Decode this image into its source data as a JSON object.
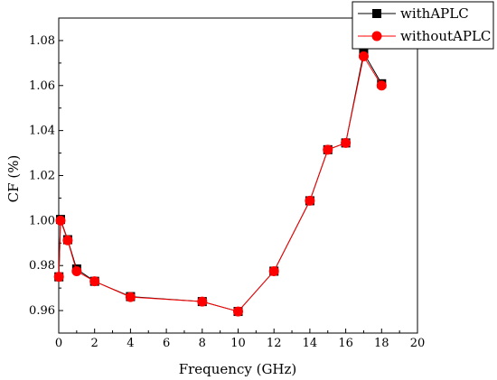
{
  "chart_data": {
    "type": "line",
    "title": "",
    "xlabel": "Frequency (GHz)",
    "ylabel": "CF (%)",
    "xlim": [
      0,
      20
    ],
    "ylim": [
      0.95,
      1.09
    ],
    "xticks": [
      0,
      2,
      4,
      6,
      8,
      10,
      12,
      14,
      16,
      18,
      20
    ],
    "yticks": [
      0.96,
      0.98,
      1.0,
      1.02,
      1.04,
      1.06,
      1.08
    ],
    "grid": false,
    "legend": "top-right",
    "series": [
      {
        "name": "withAPLC",
        "color": "#000000",
        "marker": "square",
        "points": [
          {
            "x": 0.01,
            "y": 0.975
          },
          {
            "x": 0.1,
            "y": 1.0005
          },
          {
            "x": 0.5,
            "y": 0.9915
          },
          {
            "x": 1,
            "y": 0.9785
          },
          {
            "x": 2,
            "y": 0.973
          },
          {
            "x": 4,
            "y": 0.9662
          },
          {
            "x": 8,
            "y": 0.964
          },
          {
            "x": 10,
            "y": 0.9596
          },
          {
            "x": 12,
            "y": 0.9775
          },
          {
            "x": 14,
            "y": 1.0088
          },
          {
            "x": 15,
            "y": 1.0315
          },
          {
            "x": 16,
            "y": 1.0345
          },
          {
            "x": 17,
            "y": 1.0745
          },
          {
            "x": 18,
            "y": 1.0608
          }
        ]
      },
      {
        "name": "withoutAPLC",
        "color": "#ff0000",
        "marker": "circle",
        "points": [
          {
            "x": 0.01,
            "y": 0.975
          },
          {
            "x": 0.1,
            "y": 1.0
          },
          {
            "x": 0.5,
            "y": 0.9912
          },
          {
            "x": 1,
            "y": 0.9775
          },
          {
            "x": 2,
            "y": 0.973
          },
          {
            "x": 4,
            "y": 0.966
          },
          {
            "x": 8,
            "y": 0.964
          },
          {
            "x": 10,
            "y": 0.9596
          },
          {
            "x": 12,
            "y": 0.9775
          },
          {
            "x": 14,
            "y": 1.0088
          },
          {
            "x": 15,
            "y": 1.0315
          },
          {
            "x": 16,
            "y": 1.0345
          },
          {
            "x": 17,
            "y": 1.073
          },
          {
            "x": 18,
            "y": 1.06
          }
        ]
      }
    ]
  }
}
